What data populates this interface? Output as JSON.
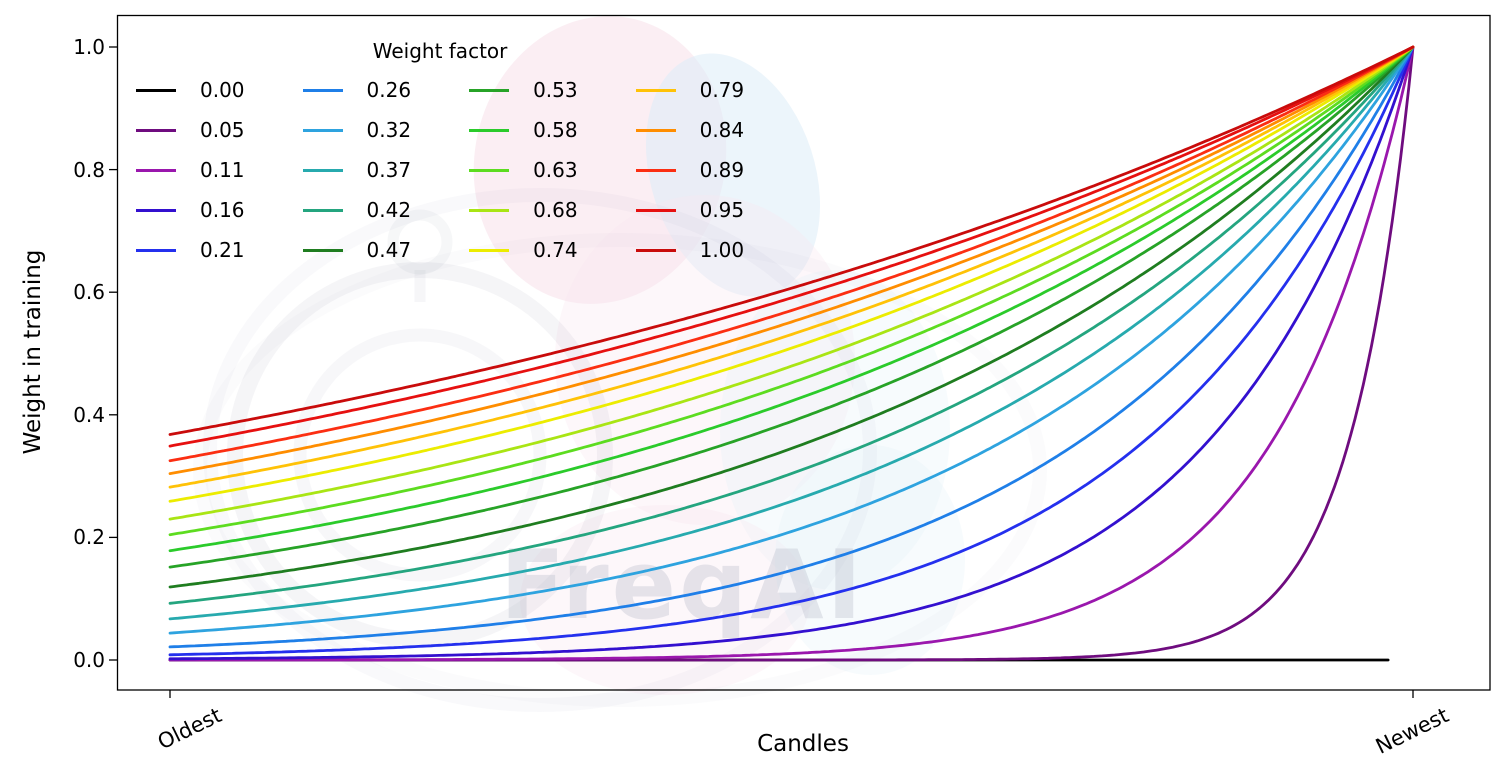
{
  "chart_data": {
    "type": "line",
    "title": "",
    "xlabel": "Candles",
    "ylabel": "Weight in training",
    "x_tick_labels": [
      "Oldest",
      "Newest"
    ],
    "y_ticks": [
      "0.0",
      "0.2",
      "0.4",
      "0.6",
      "0.8",
      "1.0"
    ],
    "ylim": [
      0.0,
      1.0
    ],
    "x_domain": [
      0,
      1
    ],
    "grid": false,
    "formula": "weight(t) = exp(-(1 - t) / weight_factor), t from 0 at oldest candle to 1 at newest; weight_factor = 0 gives weight 0",
    "legend": {
      "title": "Weight factor",
      "position": "upper-left",
      "columns": 4,
      "rows": 5,
      "order": "column-major"
    },
    "series": [
      {
        "label": "0.00",
        "weight_factor": 0.0,
        "color": "#000000"
      },
      {
        "label": "0.05",
        "weight_factor": 0.05,
        "color": "#6f0c7f"
      },
      {
        "label": "0.11",
        "weight_factor": 0.11,
        "color": "#9a17ad"
      },
      {
        "label": "0.16",
        "weight_factor": 0.16,
        "color": "#3310cf"
      },
      {
        "label": "0.21",
        "weight_factor": 0.21,
        "color": "#2430ee"
      },
      {
        "label": "0.26",
        "weight_factor": 0.26,
        "color": "#1f7fe8"
      },
      {
        "label": "0.32",
        "weight_factor": 0.32,
        "color": "#2ea3df"
      },
      {
        "label": "0.37",
        "weight_factor": 0.37,
        "color": "#27aaae"
      },
      {
        "label": "0.42",
        "weight_factor": 0.42,
        "color": "#24a57f"
      },
      {
        "label": "0.47",
        "weight_factor": 0.47,
        "color": "#1f7d20"
      },
      {
        "label": "0.53",
        "weight_factor": 0.53,
        "color": "#27a327"
      },
      {
        "label": "0.58",
        "weight_factor": 0.58,
        "color": "#2bcb2b"
      },
      {
        "label": "0.63",
        "weight_factor": 0.63,
        "color": "#5ddc20"
      },
      {
        "label": "0.68",
        "weight_factor": 0.68,
        "color": "#a9e514"
      },
      {
        "label": "0.74",
        "weight_factor": 0.74,
        "color": "#ecec00"
      },
      {
        "label": "0.79",
        "weight_factor": 0.79,
        "color": "#ffc207"
      },
      {
        "label": "0.84",
        "weight_factor": 0.84,
        "color": "#ff8d00"
      },
      {
        "label": "0.89",
        "weight_factor": 0.89,
        "color": "#fb2e12"
      },
      {
        "label": "0.95",
        "weight_factor": 0.95,
        "color": "#e61010"
      },
      {
        "label": "1.00",
        "weight_factor": 1.0,
        "color": "#c90b0b"
      }
    ]
  },
  "watermark": {
    "text": "FreqAI"
  }
}
